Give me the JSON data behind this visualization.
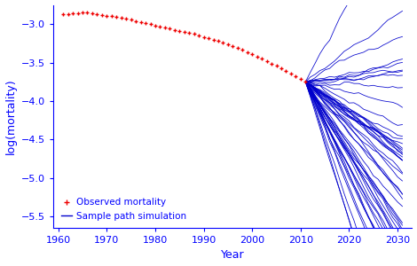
{
  "title": "",
  "xlabel": "Year",
  "ylabel": "log(mortality)",
  "xlim": [
    1959,
    2033
  ],
  "ylim": [
    -5.65,
    -2.75
  ],
  "yticks": [
    -5.5,
    -5.0,
    -4.5,
    -4.0,
    -3.5,
    -3.0
  ],
  "xticks": [
    1960,
    1970,
    1980,
    1990,
    2000,
    2010,
    2020,
    2030
  ],
  "obs_start_year": 1961,
  "obs_end_year": 2011,
  "proj_start_year": 2011,
  "proj_end_year": 2031,
  "n_paths": 50,
  "obs_color": "#EE0000",
  "proj_color": "#0000CC",
  "background_color": "#FFFFFF",
  "obs_marker_size": 3.5,
  "proj_linewidth": 0.55,
  "legend_obs_label": "Observed mortality",
  "legend_proj_label": "Sample path simulation",
  "seed": 12345,
  "obs_values": [
    -2.872,
    -2.865,
    -2.861,
    -2.858,
    -2.853,
    -2.851,
    -2.86,
    -2.87,
    -2.882,
    -2.888,
    -2.895,
    -2.905,
    -2.918,
    -2.93,
    -2.943,
    -2.958,
    -2.972,
    -2.988,
    -3.002,
    -3.016,
    -3.03,
    -3.046,
    -3.06,
    -3.076,
    -3.09,
    -3.105,
    -3.118,
    -3.13,
    -3.148,
    -3.165,
    -3.182,
    -3.2,
    -3.218,
    -3.24,
    -3.262,
    -3.285,
    -3.31,
    -3.335,
    -3.362,
    -3.39,
    -3.42,
    -3.45,
    -3.48,
    -3.513,
    -3.545,
    -3.578,
    -3.61,
    -3.645,
    -3.678,
    -3.712,
    -3.752
  ]
}
